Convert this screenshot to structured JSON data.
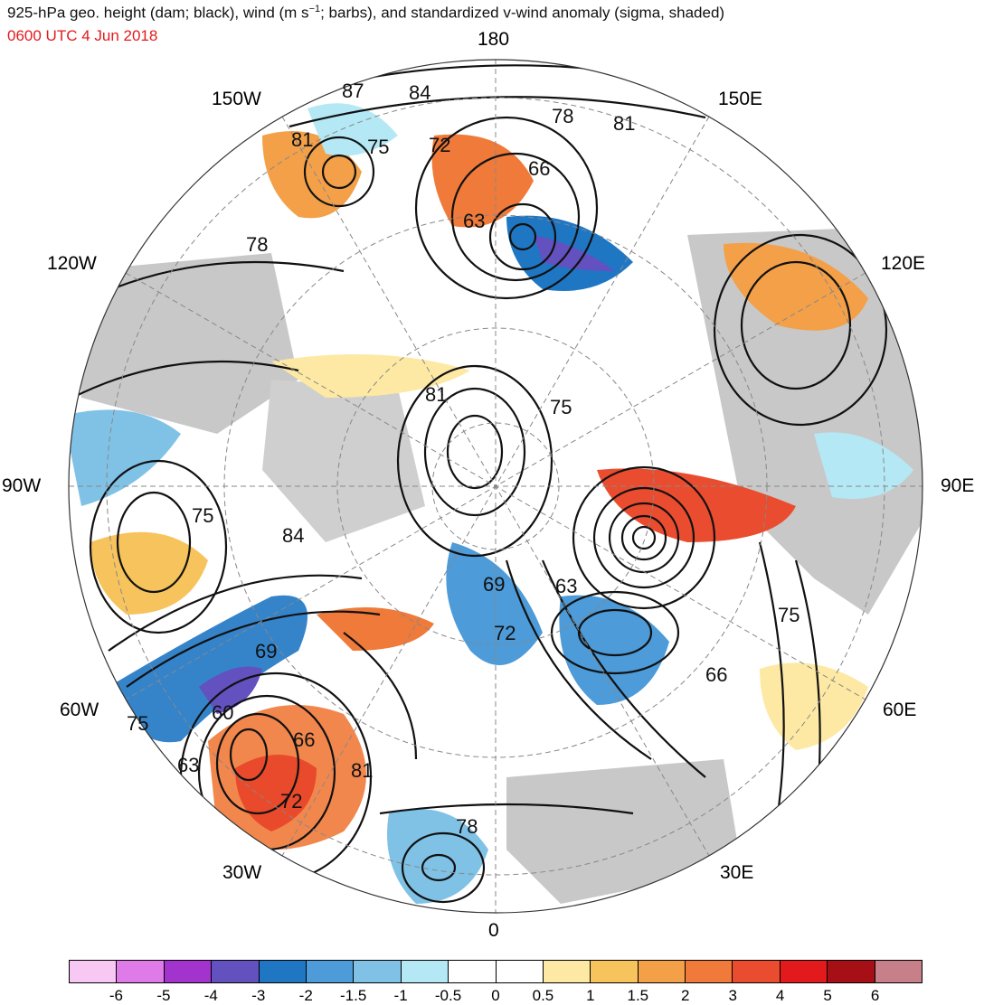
{
  "header": {
    "title_parts": [
      "925-hPa geo. height (dam; black), wind (m s",
      "−1",
      "; barbs), and standardized v-wind anomaly (sigma, shaded)"
    ],
    "valid_time": "0600 UTC 4 Jun 2018"
  },
  "map": {
    "projection": "north polar stereographic",
    "longitude_labels": [
      "180",
      "150E",
      "120E",
      "90E",
      "60E",
      "30E",
      "0",
      "30W",
      "60W",
      "90W",
      "120W",
      "150W"
    ],
    "contour_labels": [
      "87",
      "84",
      "78",
      "81",
      "81",
      "75",
      "72",
      "66",
      "63",
      "78",
      "81",
      "75",
      "75",
      "84",
      "69",
      "63",
      "72",
      "75",
      "66",
      "69",
      "60",
      "66",
      "75",
      "63",
      "72",
      "81",
      "78"
    ]
  },
  "colorbar": {
    "labels": [
      "-6",
      "-5",
      "-4",
      "-3",
      "-2",
      "-1.5",
      "-1",
      "-0.5",
      "0",
      "0.5",
      "1",
      "1.5",
      "2",
      "3",
      "4",
      "5",
      "6"
    ],
    "colors": [
      "#f7c8f3",
      "#de7be8",
      "#a233cc",
      "#6251bf",
      "#1f77c4",
      "#4d9bd8",
      "#80c2e6",
      "#b5e8f5",
      "#ffffff",
      "#ffffff",
      "#fde9a4",
      "#f7c35c",
      "#f3a049",
      "#ef7a3a",
      "#ea4c2f",
      "#e31a1c",
      "#a50f15",
      "#c77f8a"
    ]
  }
}
